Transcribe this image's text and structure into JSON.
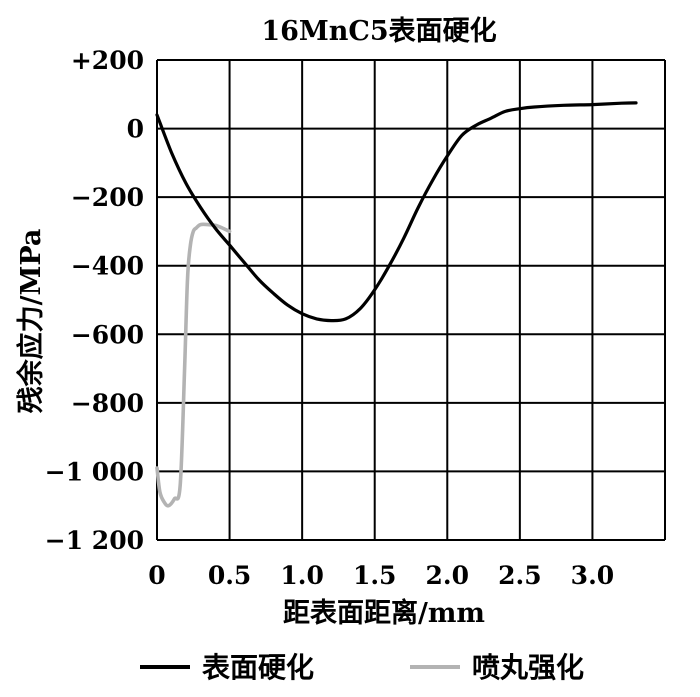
{
  "chart_data": {
    "type": "line",
    "title": "16MnC5表面硬化",
    "xlabel": "距表面距离/mm",
    "ylabel": "残余应力/MPa",
    "xlim": [
      0,
      3.5
    ],
    "ylim": [
      -1200,
      200
    ],
    "x_ticks": [
      0,
      0.5,
      1.0,
      1.5,
      2.0,
      2.5,
      3.0
    ],
    "x_tick_labels": [
      "0",
      "0.5",
      "1.0",
      "1.5",
      "2.0",
      "2.5",
      "3.0"
    ],
    "y_ticks": [
      200,
      0,
      -200,
      -400,
      -600,
      -800,
      -1000,
      -1200
    ],
    "y_tick_labels": [
      "+200",
      "0",
      "−200",
      "−400",
      "−600",
      "−800",
      "−1 000",
      "−1 200"
    ],
    "grid": true,
    "legend_position": "bottom",
    "series": [
      {
        "name": "表面硬化",
        "color": "#000000",
        "x": [
          0,
          0.1,
          0.2,
          0.3,
          0.4,
          0.5,
          0.6,
          0.7,
          0.8,
          0.9,
          1.0,
          1.1,
          1.2,
          1.3,
          1.4,
          1.5,
          1.6,
          1.7,
          1.8,
          1.9,
          2.0,
          2.1,
          2.2,
          2.3,
          2.4,
          2.5,
          2.6,
          2.8,
          3.0,
          3.2,
          3.3
        ],
        "y": [
          40,
          -70,
          -160,
          -230,
          -290,
          -340,
          -390,
          -440,
          -480,
          -515,
          -540,
          -555,
          -560,
          -555,
          -525,
          -470,
          -400,
          -320,
          -230,
          -150,
          -80,
          -20,
          10,
          30,
          50,
          58,
          63,
          68,
          70,
          74,
          75
        ]
      },
      {
        "name": "喷丸强化",
        "color": "#b3b3b3",
        "x": [
          0,
          0.02,
          0.05,
          0.08,
          0.12,
          0.16,
          0.19,
          0.21,
          0.23,
          0.25,
          0.27,
          0.3,
          0.35,
          0.4,
          0.45,
          0.5
        ],
        "y": [
          -990,
          -1060,
          -1090,
          -1100,
          -1080,
          -1040,
          -700,
          -440,
          -340,
          -300,
          -290,
          -280,
          -280,
          -282,
          -290,
          -300
        ]
      }
    ]
  }
}
